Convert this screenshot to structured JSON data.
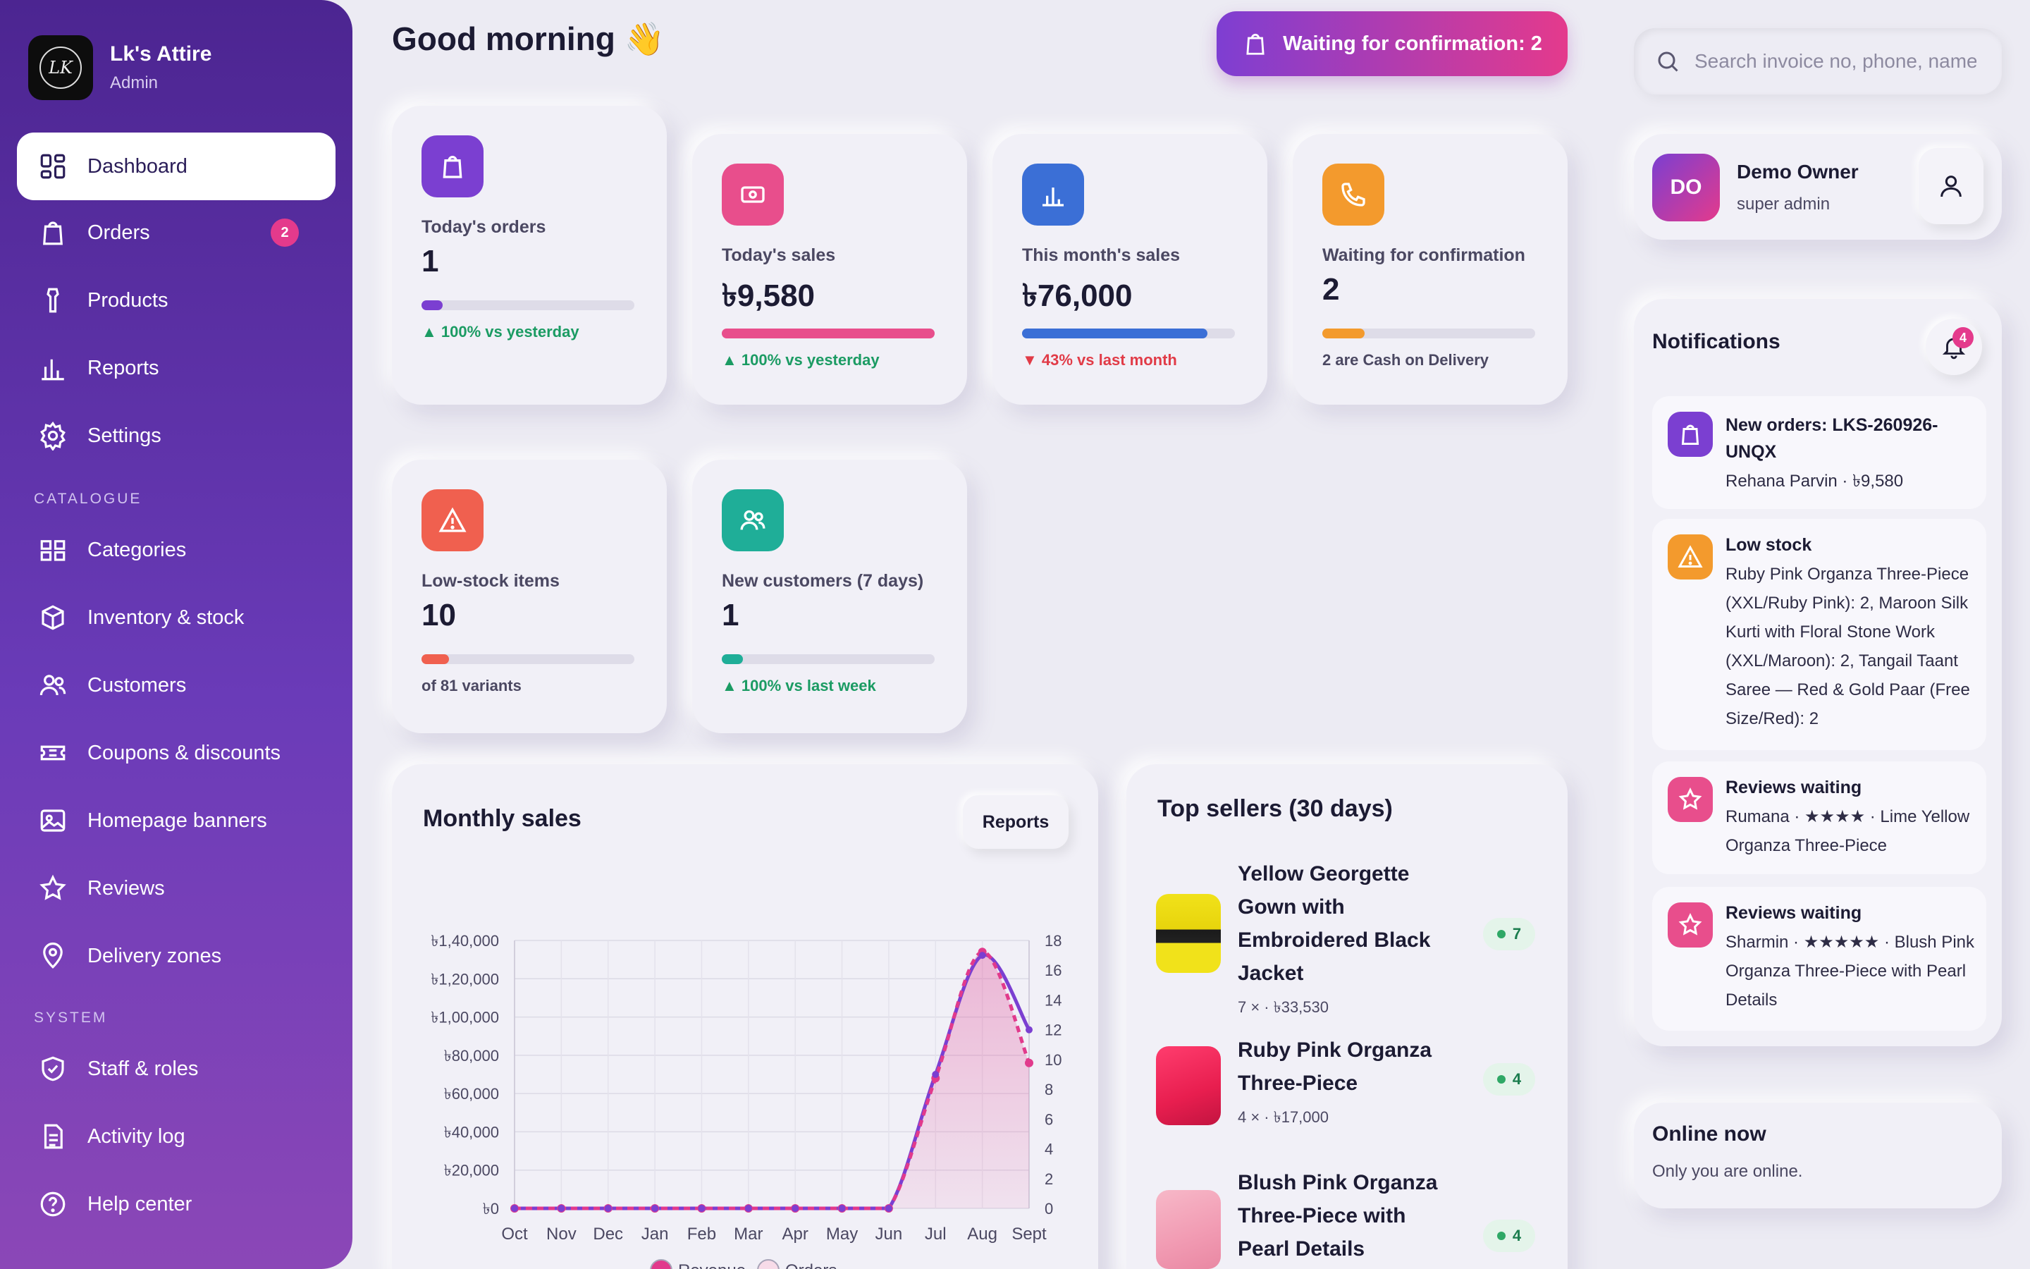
{
  "brand": {
    "logo_text": "LK",
    "name": "Lk's Attire",
    "role": "Admin"
  },
  "nav": {
    "items": [
      {
        "label": "Dashboard",
        "icon": "dashboard-icon",
        "active": true
      },
      {
        "label": "Orders",
        "icon": "shopping-bag-icon",
        "badge": "2"
      },
      {
        "label": "Products",
        "icon": "shirt-icon"
      },
      {
        "label": "Reports",
        "icon": "bar-chart-icon"
      },
      {
        "label": "Settings",
        "icon": "gear-icon"
      }
    ],
    "catalogue_label": "CATALOGUE",
    "catalogue": [
      {
        "label": "Categories",
        "icon": "grid-icon"
      },
      {
        "label": "Inventory & stock",
        "icon": "box-icon"
      },
      {
        "label": "Customers",
        "icon": "users-icon"
      },
      {
        "label": "Coupons & discounts",
        "icon": "ticket-icon"
      },
      {
        "label": "Homepage banners",
        "icon": "image-icon"
      },
      {
        "label": "Reviews",
        "icon": "star-icon"
      },
      {
        "label": "Delivery zones",
        "icon": "map-pin-icon"
      }
    ],
    "system_label": "SYSTEM",
    "system": [
      {
        "label": "Staff & roles",
        "icon": "shield-icon"
      },
      {
        "label": "Activity log",
        "icon": "document-icon"
      },
      {
        "label": "Help center",
        "icon": "help-icon"
      }
    ]
  },
  "header": {
    "greeting": "Good morning 👋",
    "waiting_button": "Waiting for confirmation: 2",
    "search_placeholder": "Search invoice no, phone, name"
  },
  "stats": [
    {
      "label": "Today's orders",
      "value": "1",
      "foot": "▲ 100% vs yesterday",
      "progress": 0.1,
      "color": "#7b3fd1",
      "icon": "shopping-bag-icon"
    },
    {
      "label": "Today's sales",
      "value": "৳9,580",
      "foot": "▲ 100% vs yesterday",
      "progress": 1.0,
      "color": "#e84e8c",
      "icon": "cash-icon"
    },
    {
      "label": "This month's sales",
      "value": "৳76,000",
      "foot": "▼ 43% vs last month",
      "progress": 0.87,
      "color": "#3b6fd6",
      "icon": "bar-chart-icon"
    },
    {
      "label": "Waiting for confirmation",
      "value": "2",
      "foot": "2 are Cash on Delivery",
      "progress": 0.2,
      "color": "#f39a2d",
      "icon": "phone-icon"
    },
    {
      "label": "Low-stock items",
      "value": "10",
      "foot": "of 81 variants",
      "progress": 0.13,
      "color": "#f0604f",
      "icon": "warning-icon"
    },
    {
      "label": "New customers (7 days)",
      "value": "1",
      "foot": "▲ 100% vs last week",
      "progress": 0.1,
      "color": "#1fae98",
      "icon": "users-icon"
    }
  ],
  "monthly": {
    "title": "Monthly sales",
    "reports_button": "Reports"
  },
  "chart_data": {
    "type": "line",
    "title": "Monthly sales",
    "categories": [
      "Oct",
      "Nov",
      "Dec",
      "Jan",
      "Feb",
      "Mar",
      "Apr",
      "May",
      "Jun",
      "Jul",
      "Aug",
      "Sept"
    ],
    "series": [
      {
        "name": "Revenue",
        "axis": "left",
        "values": [
          0,
          0,
          0,
          0,
          0,
          0,
          0,
          0,
          0,
          68000,
          134000,
          76000
        ],
        "color": "#e13a8c"
      },
      {
        "name": "Orders",
        "axis": "right",
        "values": [
          0,
          0,
          0,
          0,
          0,
          0,
          0,
          0,
          0,
          9,
          17,
          12
        ],
        "color": "#7b3fd1"
      }
    ],
    "y_left": {
      "min": 0,
      "max": 140000,
      "ticks": [
        "৳0",
        "৳20,000",
        "৳40,000",
        "৳60,000",
        "৳80,000",
        "৳1,00,000",
        "৳1,20,000",
        "৳1,40,000"
      ]
    },
    "y_right": {
      "min": 0,
      "max": 18,
      "ticks": [
        "0",
        "2",
        "4",
        "6",
        "8",
        "10",
        "12",
        "14",
        "16",
        "18"
      ]
    },
    "grid": true,
    "legend": "bottom-center"
  },
  "top_sellers": {
    "title": "Top sellers (30 days)",
    "items": [
      {
        "name": "Yellow Georgette Gown with Embroidered Black Jacket",
        "meta": "7 × · ৳33,530",
        "count": "7"
      },
      {
        "name": "Ruby Pink Organza Three-Piece",
        "meta": "4 × · ৳17,000",
        "count": "4"
      },
      {
        "name": "Blush Pink Organza Three-Piece with Pearl Details",
        "meta": "",
        "count": "4"
      }
    ]
  },
  "user": {
    "initials": "DO",
    "name": "Demo Owner",
    "role": "super admin"
  },
  "notifications": {
    "title": "Notifications",
    "badge": "4",
    "items": [
      {
        "title": "New orders: LKS-260926-UNQX",
        "body": "Rehana Parvin · ৳9,580",
        "icon": "shopping-bag-icon",
        "color": "#7b3fd1"
      },
      {
        "title": "Low stock",
        "body": "Ruby Pink Organza Three-Piece (XXL/Ruby Pink): 2, Maroon Silk Kurti with Floral Stone Work (XXL/Maroon): 2, Tangail Taant Saree — Red & Gold Paar (Free Size/Red): 2",
        "icon": "warning-icon",
        "color": "#f39a2d"
      },
      {
        "title": "Reviews waiting",
        "body": "Rumana · ★★★★ · Lime Yellow Organza Three-Piece",
        "icon": "star-icon",
        "color": "#e84e8c"
      },
      {
        "title": "Reviews waiting",
        "body": "Sharmin · ★★★★★ · Blush Pink Organza Three-Piece with Pearl Details",
        "icon": "star-icon",
        "color": "#e84e8c"
      }
    ]
  },
  "online": {
    "title": "Online now",
    "text": "Only you are online."
  }
}
